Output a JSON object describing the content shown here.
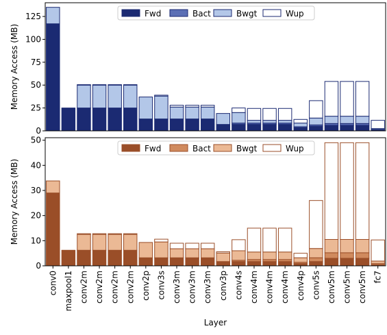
{
  "chart_data": [
    {
      "type": "bar",
      "stacked": true,
      "categories": [
        "conv0",
        "maxpool1",
        "conv2m",
        "conv2m",
        "conv2m",
        "conv2m",
        "conv2p",
        "conv3s",
        "conv3m",
        "conv3m",
        "conv3m",
        "conv3p",
        "conv4s",
        "conv4m",
        "conv4m",
        "conv4m",
        "conv4p",
        "conv5s",
        "conv5m",
        "conv5m",
        "conv5m",
        "fc7"
      ],
      "ylabel": "Memory Access (MB)",
      "ylim": [
        0,
        140
      ],
      "yticks": [
        0,
        25,
        50,
        75,
        100,
        125
      ],
      "legend_position": "top-center",
      "series": [
        {
          "name": "Fwd",
          "color": "#1b2a72",
          "values": [
            117,
            25,
            25,
            25,
            25,
            25,
            13,
            13,
            13,
            13,
            13,
            7,
            7,
            7,
            7,
            7,
            3.5,
            5,
            6,
            6,
            6,
            1
          ]
        },
        {
          "name": "Bact",
          "color": "#5b6fb5",
          "values": [
            0,
            0,
            0,
            0,
            0,
            0,
            0,
            0,
            0,
            0,
            0,
            0,
            1.5,
            1.5,
            1.5,
            1.5,
            1,
            1.5,
            2,
            2,
            2,
            0.5
          ]
        },
        {
          "name": "Bwgt",
          "color": "#b3c7e8",
          "values": [
            18,
            0,
            25,
            25,
            25,
            25,
            24,
            25,
            13,
            13,
            13,
            12,
            11.5,
            3,
            3,
            3,
            4,
            7.5,
            8,
            8,
            8,
            1
          ]
        },
        {
          "name": "Wup",
          "color": "#ffffff",
          "values": [
            0,
            0,
            0.5,
            0.5,
            0.5,
            0.5,
            0,
            1,
            2,
            2,
            2,
            0,
            5,
            13,
            13,
            13,
            4,
            19,
            38,
            38,
            38,
            9
          ]
        }
      ]
    },
    {
      "type": "bar",
      "stacked": true,
      "categories": [
        "conv0",
        "maxpool1",
        "conv2m",
        "conv2m",
        "conv2m",
        "conv2m",
        "conv2p",
        "conv3s",
        "conv3m",
        "conv3m",
        "conv3m",
        "conv3p",
        "conv4s",
        "conv4m",
        "conv4m",
        "conv4m",
        "conv4p",
        "conv5s",
        "conv5m",
        "conv5m",
        "conv5m",
        "fc7"
      ],
      "xlabel": "Layer",
      "ylabel": "Memory Access (MB)",
      "ylim": [
        0,
        51
      ],
      "yticks": [
        0,
        10,
        20,
        30,
        40,
        50
      ],
      "legend_position": "top-center",
      "series": [
        {
          "name": "Fwd",
          "color": "#9a4e28",
          "values": [
            29,
            6.2,
            6.2,
            6.2,
            6.2,
            6.2,
            3.2,
            3.2,
            3.2,
            3.2,
            3.2,
            1.7,
            1.7,
            1.7,
            1.7,
            1.7,
            0.9,
            1.7,
            3,
            3,
            3,
            0.4
          ]
        },
        {
          "name": "Bact",
          "color": "#d08a5e",
          "values": [
            0,
            0,
            0,
            0,
            0,
            0,
            0,
            0,
            0,
            0,
            0,
            0,
            0.5,
            0.8,
            0.8,
            0.8,
            0.5,
            1.5,
            2.2,
            2.2,
            2.2,
            0.5
          ]
        },
        {
          "name": "Bwgt",
          "color": "#ebb995",
          "values": [
            4.8,
            0,
            6.3,
            6.3,
            6.3,
            6.3,
            6.1,
            6.3,
            3.6,
            3.6,
            3.6,
            3.4,
            3.8,
            3,
            3,
            3,
            1.8,
            3.7,
            5.3,
            5.3,
            5.3,
            1
          ]
        },
        {
          "name": "Wup",
          "color": "#ffffff",
          "values": [
            0,
            0,
            0.3,
            0.3,
            0.3,
            0.3,
            0,
            1.1,
            2.2,
            2.2,
            2.2,
            0.5,
            4.4,
            9.5,
            9.5,
            9.5,
            1.8,
            19.1,
            38.5,
            38.5,
            38.5,
            8.4
          ]
        }
      ]
    }
  ]
}
